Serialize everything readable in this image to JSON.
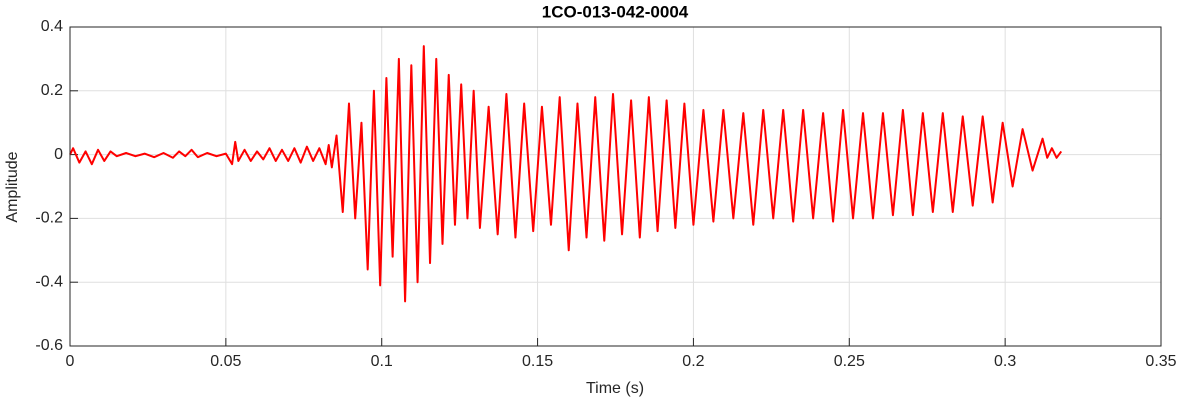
{
  "chart_data": {
    "type": "line",
    "title": "1CO-013-042-0004",
    "xlabel": "Time (s)",
    "ylabel": "Amplitude",
    "color": "#ff0000",
    "grid": true,
    "xlim": [
      0,
      0.35
    ],
    "xticks": [
      0,
      0.05,
      0.1,
      0.15,
      0.2,
      0.25,
      0.3,
      0.35
    ],
    "ylim": [
      -0.6,
      0.4
    ],
    "yticks": [
      -0.6,
      -0.4,
      -0.2,
      0,
      0.2,
      0.4
    ],
    "x": [
      0,
      0.001,
      0.003,
      0.005,
      0.007,
      0.009,
      0.011,
      0.013,
      0.015,
      0.018,
      0.021,
      0.024,
      0.027,
      0.03,
      0.033,
      0.035,
      0.037,
      0.039,
      0.041,
      0.044,
      0.047,
      0.05,
      0.052,
      0.053,
      0.054,
      0.056,
      0.058,
      0.06,
      0.062,
      0.064,
      0.066,
      0.068,
      0.07,
      0.072,
      0.074,
      0.076,
      0.078,
      0.08,
      0.082,
      0.083,
      0.084,
      0.0855,
      0.0875,
      0.0895,
      0.0915,
      0.0935,
      0.0955,
      0.0975,
      0.0995,
      0.1015,
      0.1035,
      0.1055,
      0.1075,
      0.1095,
      0.1115,
      0.1135,
      0.1155,
      0.1175,
      0.1195,
      0.1215,
      0.1235,
      0.1255,
      0.1275,
      0.1295,
      0.1315,
      0.1343,
      0.1372,
      0.14,
      0.1429,
      0.1457,
      0.1486,
      0.1514,
      0.1543,
      0.1571,
      0.16,
      0.1628,
      0.1657,
      0.1685,
      0.1714,
      0.1742,
      0.1771,
      0.18,
      0.1828,
      0.1857,
      0.1885,
      0.1914,
      0.1942,
      0.1971,
      0.2,
      0.2032,
      0.2064,
      0.2096,
      0.2128,
      0.216,
      0.2192,
      0.2224,
      0.2256,
      0.2288,
      0.232,
      0.2352,
      0.2384,
      0.2416,
      0.2448,
      0.248,
      0.2512,
      0.2544,
      0.2576,
      0.2608,
      0.264,
      0.2672,
      0.2704,
      0.2736,
      0.2768,
      0.28,
      0.2832,
      0.2864,
      0.2896,
      0.2928,
      0.296,
      0.2992,
      0.3024,
      0.3056,
      0.3088,
      0.312,
      0.3135,
      0.315,
      0.3165,
      0.318
    ],
    "values": [
      0,
      0.02,
      -0.025,
      0.01,
      -0.03,
      0.015,
      -0.02,
      0.01,
      -0.005,
      0.005,
      -0.005,
      0.003,
      -0.008,
      0.005,
      -0.01,
      0.01,
      -0.005,
      0.015,
      -0.008,
      0.005,
      -0.005,
      0.003,
      -0.03,
      0.04,
      -0.02,
      0.015,
      -0.02,
      0.01,
      -0.015,
      0.02,
      -0.02,
      0.015,
      -0.02,
      0.02,
      -0.025,
      0.025,
      -0.02,
      0.02,
      -0.03,
      0.03,
      -0.04,
      0.06,
      -0.18,
      0.16,
      -0.2,
      0.1,
      -0.36,
      0.2,
      -0.41,
      0.24,
      -0.32,
      0.3,
      -0.46,
      0.28,
      -0.4,
      0.34,
      -0.34,
      0.3,
      -0.28,
      0.25,
      -0.22,
      0.22,
      -0.2,
      0.2,
      -0.23,
      0.15,
      -0.25,
      0.19,
      -0.26,
      0.16,
      -0.24,
      0.15,
      -0.22,
      0.18,
      -0.3,
      0.16,
      -0.26,
      0.18,
      -0.27,
      0.19,
      -0.25,
      0.17,
      -0.26,
      0.18,
      -0.24,
      0.17,
      -0.23,
      0.16,
      -0.22,
      0.14,
      -0.21,
      0.14,
      -0.2,
      0.13,
      -0.22,
      0.14,
      -0.2,
      0.14,
      -0.21,
      0.14,
      -0.2,
      0.13,
      -0.21,
      0.14,
      -0.2,
      0.13,
      -0.2,
      0.13,
      -0.19,
      0.14,
      -0.19,
      0.13,
      -0.18,
      0.13,
      -0.18,
      0.12,
      -0.16,
      0.12,
      -0.15,
      0.1,
      -0.1,
      0.08,
      -0.05,
      0.05,
      -0.01,
      0.02,
      -0.01,
      0.01
    ]
  }
}
